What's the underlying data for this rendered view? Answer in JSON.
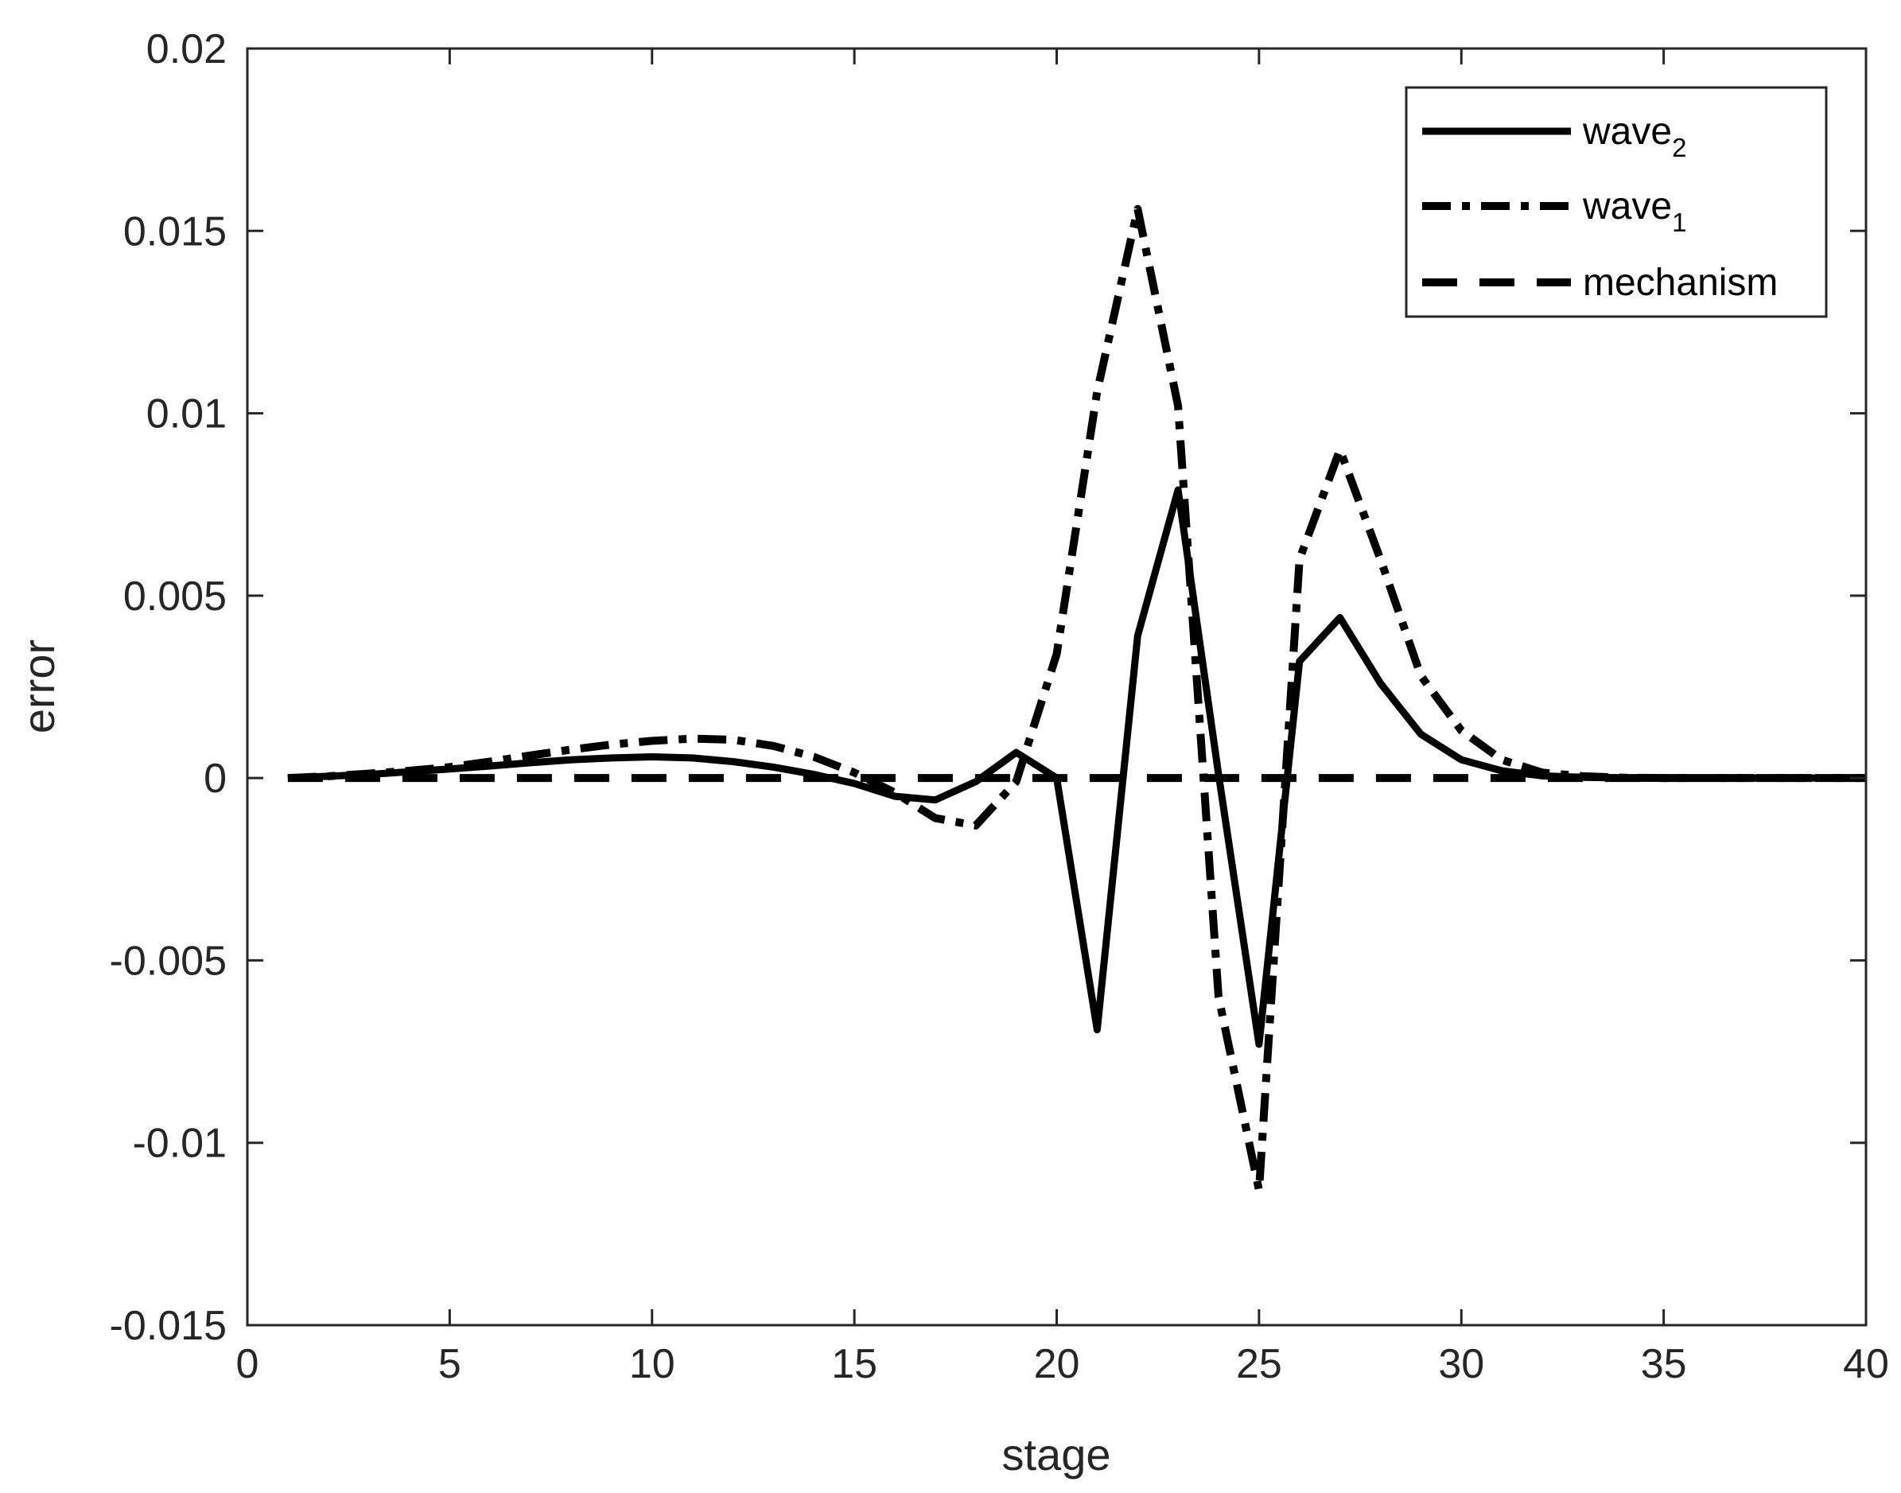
{
  "chart_data": {
    "type": "line",
    "xlabel": "stage",
    "ylabel": "error",
    "xlim": [
      0,
      40
    ],
    "ylim": [
      -0.015,
      0.02
    ],
    "xticks": [
      "0",
      "5",
      "10",
      "15",
      "20",
      "25",
      "30",
      "35",
      "40"
    ],
    "yticks": [
      "-0.015",
      "-0.01",
      "-0.005",
      "0",
      "0.005",
      "0.01",
      "0.015",
      "0.02"
    ],
    "grid": false,
    "legend_position": "top-right",
    "series": [
      {
        "name": "wave",
        "name_subscript": "2",
        "style": "solid",
        "color": "#000000",
        "x": [
          1,
          2,
          3,
          4,
          5,
          6,
          7,
          8,
          9,
          10,
          11,
          12,
          13,
          14,
          15,
          16,
          17,
          18,
          19,
          20,
          21,
          22,
          23,
          24,
          25,
          26,
          27,
          28,
          29,
          30,
          31,
          32,
          33,
          34,
          35,
          36,
          37,
          38,
          39,
          40
        ],
        "y": [
          0,
          5e-05,
          0.0001,
          0.00017,
          0.00025,
          0.00033,
          0.00042,
          0.0005,
          0.00055,
          0.00058,
          0.00055,
          0.00045,
          0.0003,
          0.0001,
          -0.00015,
          -0.0005,
          -0.0006,
          -0.0001,
          0.0007,
          0,
          -0.0069,
          0.0039,
          0.0079,
          0.0001,
          -0.0073,
          0.0032,
          0.0044,
          0.0026,
          0.0012,
          0.0005,
          0.0002,
          6e-05,
          2e-05,
          0,
          0,
          0,
          0,
          0,
          0,
          0
        ]
      },
      {
        "name": "wave",
        "name_subscript": "1",
        "style": "dash-dot",
        "color": "#000000",
        "x": [
          1,
          2,
          3,
          4,
          5,
          6,
          7,
          8,
          9,
          10,
          11,
          12,
          13,
          14,
          15,
          16,
          17,
          18,
          19,
          20,
          21,
          22,
          23,
          24,
          25,
          26,
          27,
          28,
          29,
          30,
          31,
          32,
          33,
          34,
          35,
          36,
          37,
          38,
          39,
          40
        ],
        "y": [
          0,
          5e-05,
          0.00012,
          0.0002,
          0.0003,
          0.00045,
          0.00062,
          0.00078,
          0.00092,
          0.00102,
          0.00108,
          0.00105,
          0.00088,
          0.00058,
          0.00015,
          -0.0004,
          -0.0011,
          -0.0013,
          -0.0001,
          0.0034,
          0.0106,
          0.0156,
          0.0102,
          -0.006,
          -0.0113,
          0.006,
          0.009,
          0.006,
          0.0028,
          0.0013,
          0.0005,
          0.00015,
          5e-05,
          1e-05,
          0,
          0,
          0,
          0,
          0,
          0
        ]
      },
      {
        "name": "mechanism",
        "style": "dashed",
        "color": "#000000",
        "x": [
          1,
          40
        ],
        "y": [
          0,
          0
        ]
      }
    ]
  }
}
